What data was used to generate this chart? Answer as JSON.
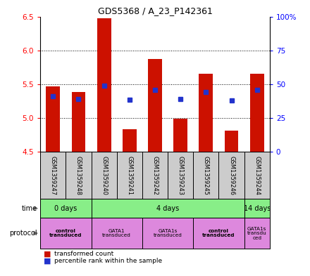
{
  "title": "GDS5368 / A_23_P142361",
  "samples": [
    "GSM1359247",
    "GSM1359248",
    "GSM1359240",
    "GSM1359241",
    "GSM1359242",
    "GSM1359243",
    "GSM1359245",
    "GSM1359246",
    "GSM1359244"
  ],
  "bar_top": [
    5.47,
    5.38,
    6.47,
    4.83,
    5.87,
    4.99,
    5.65,
    4.81,
    5.65
  ],
  "bar_bottom": [
    4.5,
    4.5,
    4.5,
    4.5,
    4.5,
    4.5,
    4.5,
    4.5,
    4.5
  ],
  "blue_y": [
    5.32,
    5.28,
    5.48,
    5.27,
    5.42,
    5.28,
    5.38,
    5.26,
    5.42
  ],
  "ylim": [
    4.5,
    6.5
  ],
  "yticks_left": [
    4.5,
    5.0,
    5.5,
    6.0,
    6.5
  ],
  "grid_yticks": [
    5.0,
    5.5,
    6.0
  ],
  "yticks_right": [
    0,
    25,
    50,
    75,
    100
  ],
  "ytick_labels_right": [
    "0",
    "25",
    "50",
    "75",
    "100%"
  ],
  "bar_color": "#cc1100",
  "blue_color": "#2233cc",
  "time_groups": [
    {
      "label": "0 days",
      "start": 0,
      "end": 2
    },
    {
      "label": "4 days",
      "start": 2,
      "end": 8
    },
    {
      "label": "14 days",
      "start": 8,
      "end": 9
    }
  ],
  "protocol_groups": [
    {
      "label": "control\ntransduced",
      "start": 0,
      "end": 2,
      "bold": true
    },
    {
      "label": "GATA1\ntransduced",
      "start": 2,
      "end": 4,
      "bold": false
    },
    {
      "label": "GATA1s\ntransduced",
      "start": 4,
      "end": 6,
      "bold": false
    },
    {
      "label": "control\ntransduced",
      "start": 6,
      "end": 8,
      "bold": true
    },
    {
      "label": "GATA1s\ntransdu\nced",
      "start": 8,
      "end": 9,
      "bold": false
    }
  ],
  "sample_bg_color": "#cccccc",
  "time_color": "#88ee88",
  "prot_color": "#dd88dd"
}
